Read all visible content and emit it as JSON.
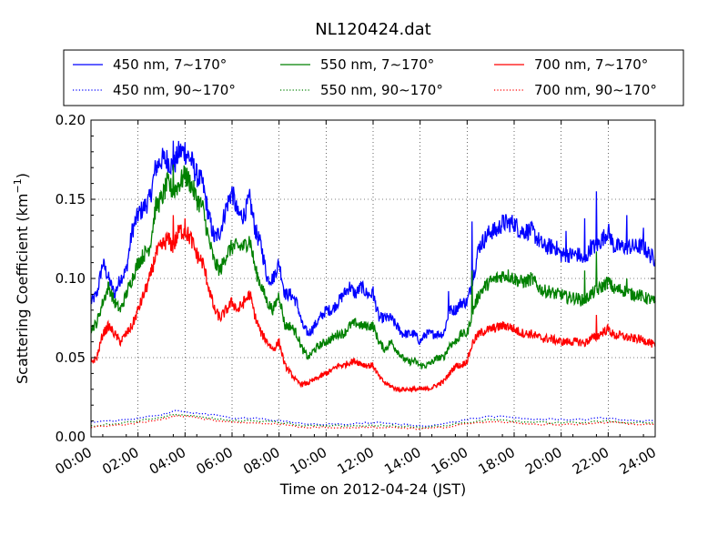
{
  "chart_data": {
    "type": "line",
    "title": "NL120424.dat",
    "xlabel": "Time on 2012-04-24 (JST)",
    "ylabel": "Scattering Coefficient (km",
    "ylabel_sup": "−1",
    "ylabel_end": ")",
    "xlim": [
      0,
      24
    ],
    "ylim": [
      0.0,
      0.2
    ],
    "x_ticks": [
      0,
      2,
      4,
      6,
      8,
      10,
      12,
      14,
      16,
      18,
      20,
      22,
      24
    ],
    "x_tick_labels": [
      "00:00",
      "02:00",
      "04:00",
      "06:00",
      "08:00",
      "10:00",
      "12:00",
      "14:00",
      "16:00",
      "18:00",
      "20:00",
      "22:00",
      "24:00"
    ],
    "y_ticks": [
      0.0,
      0.05,
      0.1,
      0.15,
      0.2
    ],
    "y_tick_labels": [
      "0.00",
      "0.05",
      "0.10",
      "0.15",
      "0.20"
    ],
    "grid": true,
    "legend_position": "top, above plot, 3 columns",
    "series": [
      {
        "name": "450 nm, 7∼170°",
        "color": "#0000ff",
        "style": "solid",
        "x": [
          0,
          0.25,
          0.5,
          0.75,
          1,
          1.25,
          1.5,
          1.75,
          2,
          2.25,
          2.5,
          2.75,
          3,
          3.25,
          3.5,
          3.75,
          4,
          4.25,
          4.5,
          4.75,
          5,
          5.25,
          5.5,
          5.75,
          6,
          6.25,
          6.5,
          6.75,
          7,
          7.25,
          7.5,
          7.75,
          8,
          8.25,
          8.5,
          8.75,
          9,
          9.25,
          9.5,
          9.75,
          10,
          10.25,
          10.5,
          10.75,
          11,
          11.25,
          11.5,
          11.75,
          12,
          12.25,
          12.5,
          12.75,
          13,
          13.25,
          13.5,
          13.75,
          14,
          14.25,
          14.5,
          14.75,
          15,
          15.25,
          15.5,
          15.75,
          16,
          16.25,
          16.5,
          16.75,
          17,
          17.25,
          17.5,
          17.75,
          18,
          18.25,
          18.5,
          18.75,
          19,
          19.25,
          19.5,
          19.75,
          20,
          20.25,
          20.5,
          20.75,
          21,
          21.25,
          21.5,
          21.75,
          22,
          22.25,
          22.5,
          22.75,
          23,
          23.25,
          23.5,
          23.75,
          24
        ],
        "y": [
          0.085,
          0.09,
          0.11,
          0.1,
          0.09,
          0.1,
          0.105,
          0.13,
          0.14,
          0.145,
          0.15,
          0.17,
          0.175,
          0.175,
          0.17,
          0.18,
          0.18,
          0.175,
          0.165,
          0.16,
          0.14,
          0.125,
          0.13,
          0.145,
          0.155,
          0.14,
          0.14,
          0.15,
          0.13,
          0.12,
          0.1,
          0.1,
          0.11,
          0.09,
          0.09,
          0.085,
          0.07,
          0.065,
          0.07,
          0.075,
          0.08,
          0.08,
          0.085,
          0.09,
          0.095,
          0.09,
          0.095,
          0.09,
          0.09,
          0.075,
          0.075,
          0.075,
          0.07,
          0.065,
          0.065,
          0.065,
          0.06,
          0.065,
          0.065,
          0.065,
          0.065,
          0.08,
          0.08,
          0.085,
          0.085,
          0.1,
          0.12,
          0.125,
          0.13,
          0.13,
          0.135,
          0.135,
          0.135,
          0.13,
          0.13,
          0.13,
          0.125,
          0.12,
          0.12,
          0.12,
          0.115,
          0.115,
          0.115,
          0.115,
          0.11,
          0.12,
          0.12,
          0.125,
          0.13,
          0.12,
          0.12,
          0.12,
          0.12,
          0.12,
          0.12,
          0.115,
          0.112
        ],
        "spikes": [
          [
            3.5,
            0.187
          ],
          [
            4.0,
            0.186
          ],
          [
            6.0,
            0.158
          ],
          [
            12.0,
            0.095
          ],
          [
            15.2,
            0.092
          ],
          [
            16.2,
            0.136
          ],
          [
            20.2,
            0.13
          ],
          [
            21.0,
            0.138
          ],
          [
            21.5,
            0.155
          ],
          [
            22.8,
            0.14
          ],
          [
            23.5,
            0.132
          ]
        ]
      },
      {
        "name": "550 nm, 7∼170°",
        "color": "#008000",
        "style": "solid",
        "x": [
          0,
          0.25,
          0.5,
          0.75,
          1,
          1.25,
          1.5,
          1.75,
          2,
          2.25,
          2.5,
          2.75,
          3,
          3.25,
          3.5,
          3.75,
          4,
          4.25,
          4.5,
          4.75,
          5,
          5.25,
          5.5,
          5.75,
          6,
          6.25,
          6.5,
          6.75,
          7,
          7.25,
          7.5,
          7.75,
          8,
          8.25,
          8.5,
          8.75,
          9,
          9.25,
          9.5,
          9.75,
          10,
          10.25,
          10.5,
          10.75,
          11,
          11.25,
          11.5,
          11.75,
          12,
          12.25,
          12.5,
          12.75,
          13,
          13.25,
          13.5,
          13.75,
          14,
          14.25,
          14.5,
          14.75,
          15,
          15.25,
          15.5,
          15.75,
          16,
          16.25,
          16.5,
          16.75,
          17,
          17.25,
          17.5,
          17.75,
          18,
          18.25,
          18.5,
          18.75,
          19,
          19.25,
          19.5,
          19.75,
          20,
          20.25,
          20.5,
          20.75,
          21,
          21.25,
          21.5,
          21.75,
          22,
          22.25,
          22.5,
          22.75,
          23,
          23.25,
          23.5,
          23.75,
          24
        ],
        "y": [
          0.068,
          0.072,
          0.085,
          0.095,
          0.085,
          0.08,
          0.09,
          0.1,
          0.11,
          0.115,
          0.12,
          0.145,
          0.15,
          0.16,
          0.155,
          0.16,
          0.165,
          0.16,
          0.15,
          0.145,
          0.125,
          0.11,
          0.105,
          0.115,
          0.12,
          0.12,
          0.12,
          0.125,
          0.105,
          0.095,
          0.085,
          0.08,
          0.09,
          0.07,
          0.07,
          0.065,
          0.055,
          0.05,
          0.055,
          0.058,
          0.06,
          0.062,
          0.065,
          0.065,
          0.07,
          0.072,
          0.07,
          0.07,
          0.07,
          0.06,
          0.055,
          0.06,
          0.055,
          0.05,
          0.047,
          0.048,
          0.045,
          0.045,
          0.047,
          0.05,
          0.05,
          0.058,
          0.06,
          0.065,
          0.065,
          0.08,
          0.09,
          0.095,
          0.098,
          0.1,
          0.102,
          0.102,
          0.1,
          0.098,
          0.098,
          0.1,
          0.095,
          0.092,
          0.092,
          0.09,
          0.09,
          0.088,
          0.088,
          0.087,
          0.086,
          0.09,
          0.092,
          0.095,
          0.098,
          0.093,
          0.093,
          0.092,
          0.09,
          0.09,
          0.088,
          0.087,
          0.085
        ],
        "spikes": [
          [
            3.5,
            0.172
          ],
          [
            4.0,
            0.17
          ],
          [
            12.0,
            0.072
          ],
          [
            16.2,
            0.105
          ],
          [
            21.0,
            0.105
          ],
          [
            21.5,
            0.117
          ],
          [
            22.8,
            0.1
          ]
        ]
      },
      {
        "name": "700 nm, 7∼170°",
        "color": "#ff0000",
        "style": "solid",
        "x": [
          0,
          0.25,
          0.5,
          0.75,
          1,
          1.25,
          1.5,
          1.75,
          2,
          2.25,
          2.5,
          2.75,
          3,
          3.25,
          3.5,
          3.75,
          4,
          4.25,
          4.5,
          4.75,
          5,
          5.25,
          5.5,
          5.75,
          6,
          6.25,
          6.5,
          6.75,
          7,
          7.25,
          7.5,
          7.75,
          8,
          8.25,
          8.5,
          8.75,
          9,
          9.25,
          9.5,
          9.75,
          10,
          10.25,
          10.5,
          10.75,
          11,
          11.25,
          11.5,
          11.75,
          12,
          12.25,
          12.5,
          12.75,
          13,
          13.25,
          13.5,
          13.75,
          14,
          14.25,
          14.5,
          14.75,
          15,
          15.25,
          15.5,
          15.75,
          16,
          16.25,
          16.5,
          16.75,
          17,
          17.25,
          17.5,
          17.75,
          18,
          18.25,
          18.5,
          18.75,
          19,
          19.25,
          19.5,
          19.75,
          20,
          20.25,
          20.5,
          20.75,
          21,
          21.25,
          21.5,
          21.75,
          22,
          22.25,
          22.5,
          22.75,
          23,
          23.25,
          23.5,
          23.75,
          24
        ],
        "y": [
          0.047,
          0.05,
          0.065,
          0.07,
          0.065,
          0.06,
          0.065,
          0.07,
          0.08,
          0.09,
          0.1,
          0.115,
          0.12,
          0.125,
          0.12,
          0.13,
          0.13,
          0.125,
          0.115,
          0.11,
          0.095,
          0.08,
          0.075,
          0.08,
          0.085,
          0.08,
          0.085,
          0.09,
          0.075,
          0.065,
          0.06,
          0.055,
          0.06,
          0.045,
          0.04,
          0.035,
          0.033,
          0.034,
          0.036,
          0.038,
          0.04,
          0.042,
          0.045,
          0.045,
          0.047,
          0.048,
          0.046,
          0.045,
          0.045,
          0.038,
          0.034,
          0.032,
          0.03,
          0.03,
          0.03,
          0.03,
          0.03,
          0.03,
          0.031,
          0.033,
          0.035,
          0.04,
          0.045,
          0.045,
          0.048,
          0.06,
          0.065,
          0.067,
          0.068,
          0.069,
          0.07,
          0.07,
          0.068,
          0.066,
          0.065,
          0.065,
          0.063,
          0.062,
          0.062,
          0.061,
          0.06,
          0.06,
          0.06,
          0.06,
          0.059,
          0.062,
          0.063,
          0.066,
          0.068,
          0.064,
          0.064,
          0.063,
          0.062,
          0.062,
          0.061,
          0.06,
          0.057
        ],
        "spikes": [
          [
            3.5,
            0.14
          ],
          [
            4.0,
            0.138
          ],
          [
            21.5,
            0.077
          ]
        ]
      },
      {
        "name": "450 nm, 90∼170°",
        "color": "#0000ff",
        "style": "dotted",
        "x": [
          0,
          1,
          2,
          3,
          3.5,
          4,
          5,
          6,
          7,
          8,
          9,
          10,
          11,
          12,
          13,
          14,
          15,
          16,
          17,
          18,
          19,
          20,
          21,
          22,
          23,
          24
        ],
        "y": [
          0.009,
          0.01,
          0.012,
          0.014,
          0.016,
          0.016,
          0.014,
          0.012,
          0.012,
          0.01,
          0.008,
          0.008,
          0.008,
          0.009,
          0.008,
          0.007,
          0.008,
          0.011,
          0.013,
          0.012,
          0.011,
          0.011,
          0.011,
          0.012,
          0.01,
          0.01
        ]
      },
      {
        "name": "550 nm, 90∼170°",
        "color": "#008000",
        "style": "dotted",
        "x": [
          0,
          1,
          2,
          3,
          3.5,
          4,
          5,
          6,
          7,
          8,
          9,
          10,
          11,
          12,
          13,
          14,
          15,
          16,
          17,
          18,
          19,
          20,
          21,
          22,
          23,
          24
        ],
        "y": [
          0.007,
          0.008,
          0.01,
          0.012,
          0.014,
          0.014,
          0.012,
          0.01,
          0.01,
          0.009,
          0.007,
          0.007,
          0.007,
          0.007,
          0.007,
          0.006,
          0.007,
          0.009,
          0.011,
          0.01,
          0.009,
          0.009,
          0.009,
          0.01,
          0.009,
          0.009
        ]
      },
      {
        "name": "700 nm, 90∼170°",
        "color": "#ff0000",
        "style": "dotted",
        "x": [
          0,
          1,
          2,
          3,
          3.5,
          4,
          5,
          6,
          7,
          8,
          9,
          10,
          11,
          12,
          13,
          14,
          15,
          16,
          17,
          18,
          19,
          20,
          21,
          22,
          23,
          24
        ],
        "y": [
          0.006,
          0.007,
          0.009,
          0.011,
          0.013,
          0.013,
          0.011,
          0.009,
          0.009,
          0.008,
          0.006,
          0.006,
          0.006,
          0.006,
          0.006,
          0.005,
          0.006,
          0.008,
          0.01,
          0.009,
          0.008,
          0.008,
          0.008,
          0.009,
          0.008,
          0.008
        ]
      }
    ]
  }
}
